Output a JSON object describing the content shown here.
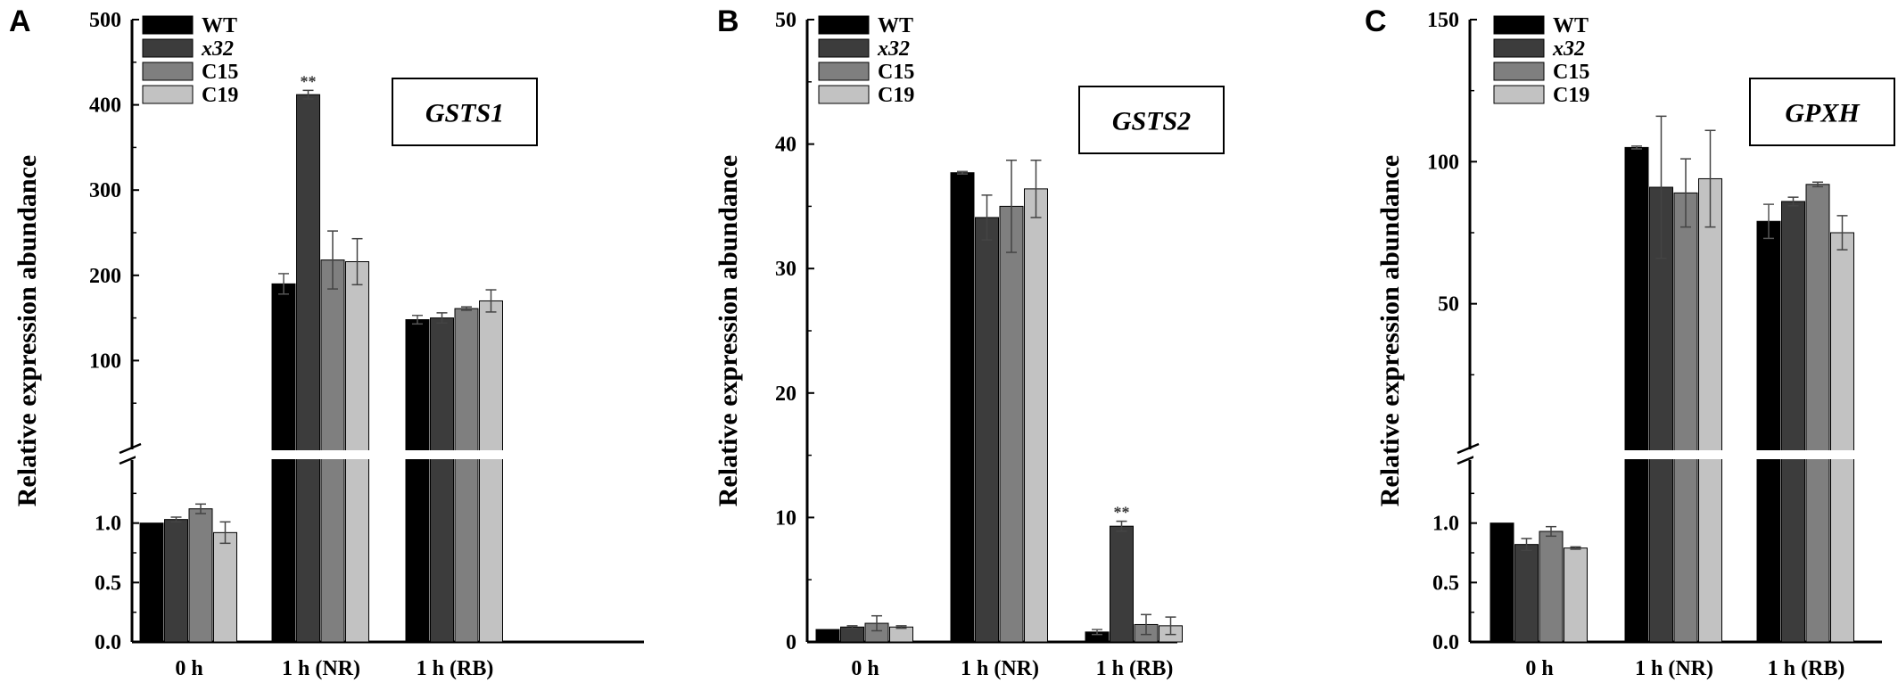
{
  "colors": {
    "WT": "#000000",
    "x32": "#3c3c3c",
    "C15": "#7f7f7f",
    "C19": "#c2c2c2"
  },
  "chart_data": [
    {
      "panel": "A",
      "type": "bar",
      "gene": "GSTS1",
      "ylabel": "Relative expression abundance",
      "categories": [
        "0 h",
        "1 h (NR)",
        "1 h (RB)"
      ],
      "broken_axis": true,
      "lower_ylim": [
        0,
        1.5
      ],
      "lower_ticks": [
        "0.0",
        "0.5",
        "1.0"
      ],
      "upper_ylim": [
        0,
        500
      ],
      "upper_ticks": [
        "100",
        "200",
        "300",
        "400",
        "500"
      ],
      "series": [
        {
          "name": "WT",
          "values": [
            1.0,
            190,
            148
          ],
          "errors": [
            0.0,
            12,
            5
          ]
        },
        {
          "name": "x32",
          "values": [
            1.03,
            412,
            150
          ],
          "errors": [
            0.02,
            5,
            6
          ],
          "italic": true
        },
        {
          "name": "C15",
          "values": [
            1.12,
            218,
            161
          ],
          "errors": [
            0.04,
            34,
            2
          ]
        },
        {
          "name": "C19",
          "values": [
            0.92,
            216,
            170
          ],
          "errors": [
            0.09,
            27,
            13
          ]
        }
      ],
      "annotations": [
        {
          "text": "**",
          "category": 1,
          "series": 1
        }
      ]
    },
    {
      "panel": "B",
      "type": "bar",
      "gene": "GSTS2",
      "ylabel": "Relative expression abundance",
      "categories": [
        "0 h",
        "1 h (NR)",
        "1 h (RB)"
      ],
      "broken_axis": false,
      "ylim": [
        0,
        50
      ],
      "ticks": [
        "0",
        "10",
        "20",
        "30",
        "40",
        "50"
      ],
      "series": [
        {
          "name": "WT",
          "values": [
            1.0,
            37.7,
            0.8
          ],
          "errors": [
            0.0,
            0.1,
            0.2
          ]
        },
        {
          "name": "x32",
          "values": [
            1.2,
            34.1,
            9.3
          ],
          "errors": [
            0.1,
            1.8,
            0.4
          ],
          "italic": true
        },
        {
          "name": "C15",
          "values": [
            1.5,
            35.0,
            1.4
          ],
          "errors": [
            0.6,
            3.7,
            0.8
          ]
        },
        {
          "name": "C19",
          "values": [
            1.2,
            36.4,
            1.3
          ],
          "errors": [
            0.1,
            2.3,
            0.7
          ]
        }
      ],
      "annotations": [
        {
          "text": "**",
          "category": 2,
          "series": 1
        }
      ]
    },
    {
      "panel": "C",
      "type": "bar",
      "gene": "GPXH",
      "ylabel": "Relative expression abundance",
      "categories": [
        "0 h",
        "1 h (NR)",
        "1 h (RB)"
      ],
      "broken_axis": true,
      "lower_ylim": [
        0,
        1.5
      ],
      "lower_ticks": [
        "0.0",
        "0.5",
        "1.0"
      ],
      "upper_ylim": [
        0,
        150
      ],
      "upper_ticks": [
        "50",
        "100",
        "150"
      ],
      "series": [
        {
          "name": "WT",
          "values": [
            1.0,
            105,
            79
          ],
          "errors": [
            0.0,
            0.5,
            6
          ]
        },
        {
          "name": "x32",
          "values": [
            0.82,
            91,
            86
          ],
          "errors": [
            0.05,
            25,
            1.5
          ],
          "italic": true
        },
        {
          "name": "C15",
          "values": [
            0.93,
            89,
            92
          ],
          "errors": [
            0.04,
            12,
            0.8
          ]
        },
        {
          "name": "C19",
          "values": [
            0.79,
            94,
            75
          ],
          "errors": [
            0.01,
            17,
            6
          ]
        }
      ],
      "annotations": []
    }
  ]
}
